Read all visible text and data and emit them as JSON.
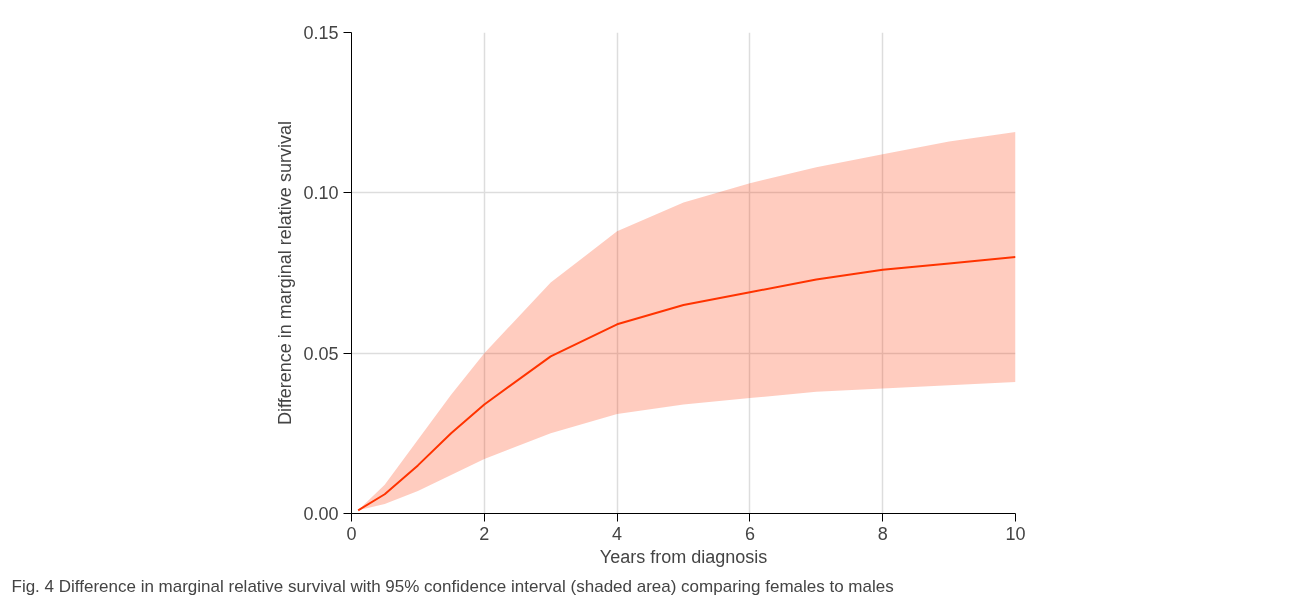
{
  "chart_data": {
    "type": "line",
    "xlabel": "Years from diagnosis",
    "ylabel": "Difference in marginal relative survival",
    "x": [
      0.1,
      0.5,
      1,
      1.5,
      2,
      3,
      4,
      5,
      6,
      7,
      8,
      9,
      10
    ],
    "series": [
      {
        "color": "#ff3300",
        "values": [
          0.001,
          0.006,
          0.015,
          0.025,
          0.034,
          0.049,
          0.059,
          0.065,
          0.069,
          0.073,
          0.076,
          0.078,
          0.08
        ],
        "lower": [
          0.001,
          0.003,
          0.007,
          0.012,
          0.017,
          0.025,
          0.031,
          0.034,
          0.036,
          0.038,
          0.039,
          0.04,
          0.041
        ],
        "upper": [
          0.001,
          0.009,
          0.023,
          0.037,
          0.05,
          0.072,
          0.088,
          0.097,
          0.103,
          0.108,
          0.112,
          0.116,
          0.119
        ]
      }
    ],
    "xlim": [
      0,
      10
    ],
    "xticks": [
      0,
      2,
      4,
      6,
      8,
      10
    ],
    "ylim": [
      0,
      0.15
    ],
    "yticks": [
      {
        "value": 0,
        "label": "0.00"
      },
      {
        "value": 0.05,
        "label": "0.05"
      },
      {
        "value": 0.1,
        "label": "0.10"
      },
      {
        "value": 0.15,
        "label": "0.15"
      }
    ],
    "grid": true,
    "marker": "none",
    "line_style": "solid",
    "annotations": [
      "Fig. 4 Difference in marginal relative survival with 95% confidence interval (shaded area) comparing females to males"
    ]
  }
}
